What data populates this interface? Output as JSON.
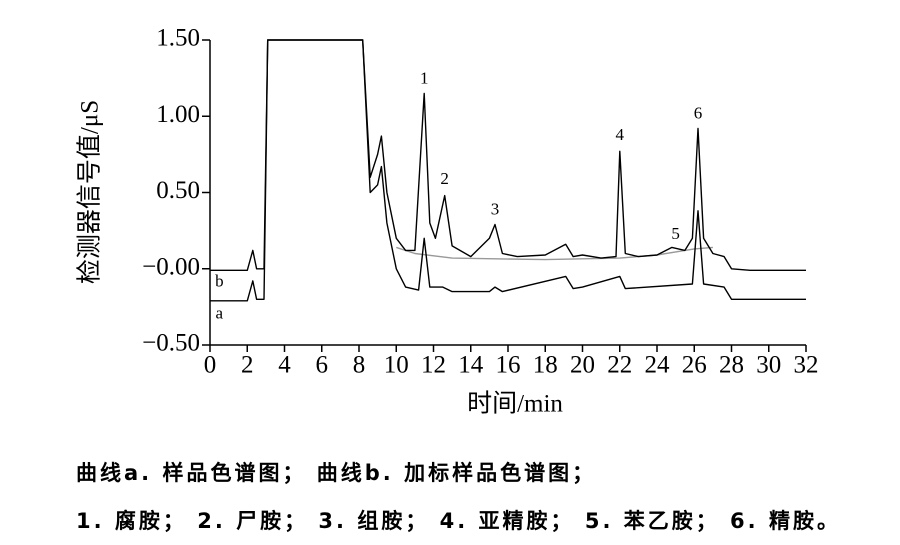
{
  "chart_data": {
    "type": "line",
    "xlabel": "时间/min",
    "ylabel": "检测器信号值/μS",
    "xlim": [
      0,
      32
    ],
    "xticks": [
      0,
      2,
      4,
      6,
      8,
      10,
      12,
      14,
      16,
      18,
      20,
      22,
      24,
      26,
      28,
      30,
      32
    ],
    "ylim": [
      -0.5,
      1.5
    ],
    "yticks": [
      {
        "value": -0.5,
        "label": "−0.50"
      },
      {
        "value": 0,
        "label": "−0.00"
      },
      {
        "value": 0.5,
        "label": "0.50"
      },
      {
        "value": 1.0,
        "label": "1.00"
      },
      {
        "value": 1.5,
        "label": "1.50"
      }
    ],
    "series": [
      {
        "name": "b",
        "color": "#000000",
        "x": [
          0,
          2.0,
          2.3,
          2.5,
          2.9,
          3.1,
          8.2,
          8.6,
          9.0,
          9.2,
          9.5,
          10,
          10.5,
          11.0,
          11.5,
          11.8,
          12.1,
          12.6,
          13,
          14,
          15.0,
          15.3,
          15.7,
          16.5,
          18,
          19.1,
          19.5,
          20,
          21,
          21.8,
          22.0,
          22.3,
          23,
          24,
          24.8,
          25.5,
          25.9,
          26.2,
          26.5,
          27,
          27.6,
          28,
          29,
          32
        ],
        "values": [
          -0.01,
          -0.01,
          0.12,
          0.0,
          0.0,
          1.5,
          1.5,
          0.6,
          0.75,
          0.87,
          0.5,
          0.2,
          0.12,
          0.12,
          1.15,
          0.3,
          0.2,
          0.48,
          0.15,
          0.08,
          0.2,
          0.29,
          0.1,
          0.08,
          0.09,
          0.16,
          0.08,
          0.09,
          0.07,
          0.08,
          0.77,
          0.1,
          0.08,
          0.09,
          0.14,
          0.12,
          0.2,
          0.92,
          0.2,
          0.1,
          0.08,
          0.0,
          -0.01,
          -0.01
        ]
      },
      {
        "name": "a",
        "color": "#000000",
        "x": [
          0,
          2.0,
          2.3,
          2.5,
          2.9,
          3.1,
          8.2,
          8.6,
          9.0,
          9.2,
          9.5,
          10,
          10.5,
          11.2,
          11.5,
          11.8,
          12.5,
          13,
          15,
          15.3,
          15.7,
          19.1,
          19.5,
          20,
          22.0,
          22.3,
          25.9,
          26.2,
          26.5,
          27.6,
          28,
          32
        ],
        "values": [
          -0.21,
          -0.21,
          -0.08,
          -0.2,
          -0.2,
          1.5,
          1.5,
          0.5,
          0.55,
          0.67,
          0.3,
          0.0,
          -0.12,
          -0.14,
          0.2,
          -0.12,
          -0.12,
          -0.15,
          -0.15,
          -0.12,
          -0.15,
          -0.05,
          -0.13,
          -0.12,
          -0.05,
          -0.13,
          -0.1,
          0.38,
          -0.1,
          -0.12,
          -0.2,
          -0.2
        ]
      },
      {
        "color": "#999999",
        "x": [
          10,
          11,
          13,
          18,
          22,
          24,
          26,
          27
        ],
        "values": [
          0.14,
          0.1,
          0.07,
          0.06,
          0.07,
          0.09,
          0.13,
          0.14
        ]
      }
    ],
    "annotations": [
      {
        "text": "1",
        "x": 11.5,
        "y": 1.24
      },
      {
        "text": "2",
        "x": 12.6,
        "y": 0.58
      },
      {
        "text": "3",
        "x": 15.3,
        "y": 0.38
      },
      {
        "text": "4",
        "x": 22.0,
        "y": 0.87
      },
      {
        "text": "5",
        "x": 25.0,
        "y": 0.22
      },
      {
        "text": "6",
        "x": 26.2,
        "y": 1.01
      }
    ],
    "curve_labels": [
      {
        "x": 0.5,
        "y": -0.09
      },
      {
        "x": 0.5,
        "y": -0.3
      }
    ],
    "caption": [
      "曲线a. 样品色谱图； 曲线b. 加标样品色谱图；",
      "1. 腐胺； 2. 尸胺； 3. 组胺； 4. 亚精胺； 5. 苯乙胺； 6. 精胺。"
    ]
  }
}
